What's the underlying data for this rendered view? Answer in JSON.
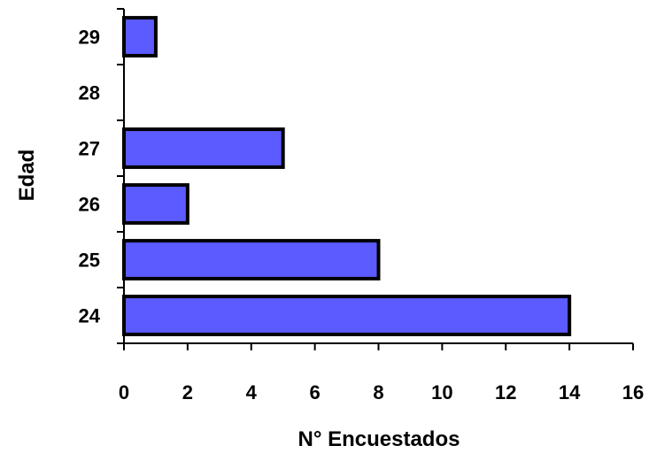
{
  "chart_data": {
    "type": "bar",
    "orientation": "horizontal",
    "title": "",
    "xlabel": "N° Encuestados",
    "ylabel": "Edad",
    "categories": [
      "24",
      "25",
      "26",
      "27",
      "28",
      "29"
    ],
    "values": [
      14,
      8,
      2,
      5,
      0,
      1
    ],
    "xlim": [
      0,
      16
    ],
    "xticks": [
      "0",
      "2",
      "4",
      "6",
      "8",
      "10",
      "12",
      "14",
      "16"
    ],
    "grid": false,
    "legend": "none",
    "bar_color": "#5b5bff",
    "bar_edge_color": "#000000"
  }
}
